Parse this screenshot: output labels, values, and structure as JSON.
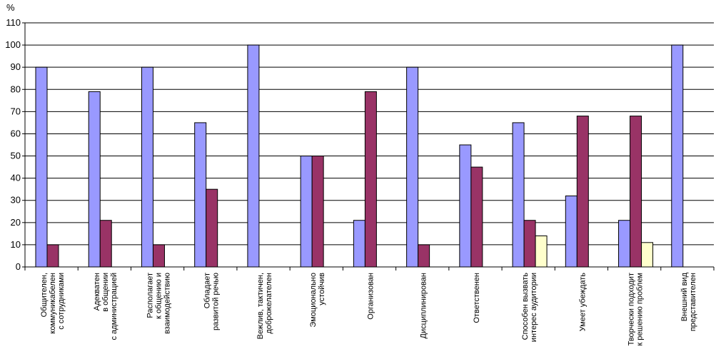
{
  "chart_data": {
    "type": "bar",
    "unit_label": "%",
    "ylim": [
      0,
      110
    ],
    "yticks": [
      0,
      10,
      20,
      30,
      40,
      50,
      60,
      70,
      80,
      90,
      100,
      110
    ],
    "grid": true,
    "legend": "none",
    "categories": [
      [
        "Общителен,",
        "коммуникабелен",
        "с сотрудниками"
      ],
      [
        "Адекватен",
        "в общении",
        "с администрацией"
      ],
      [
        "Располагает",
        "к общению и",
        "взаимодействию"
      ],
      [
        "Обладает",
        "развитой речью"
      ],
      [
        "Вежлив, тактичен,",
        "доброжелателен"
      ],
      [
        "Эмоционально",
        "устойчив"
      ],
      [
        "Организован"
      ],
      [
        "Дисциплинирован"
      ],
      [
        "Ответственен"
      ],
      [
        "Способен вызвать",
        "интерес аудитории"
      ],
      [
        "Умеет убеждать"
      ],
      [
        "Творчески подходит",
        "к решению проблем"
      ],
      [
        "Внешний вид",
        "представителен"
      ]
    ],
    "series": [
      {
        "values": [
          90,
          79,
          90,
          65,
          100,
          50,
          21,
          90,
          55,
          65,
          32,
          21,
          100
        ]
      },
      {
        "values": [
          10,
          21,
          10,
          35,
          0,
          50,
          79,
          10,
          45,
          21,
          68,
          68,
          0
        ]
      },
      {
        "values": [
          0,
          0,
          0,
          0,
          0,
          0,
          0,
          0,
          0,
          14,
          0,
          11,
          0
        ]
      }
    ],
    "colors": [
      "#9999ff",
      "#993366",
      "#ffffcc"
    ],
    "grid_color": "#000000",
    "bar_border": "#000000"
  }
}
